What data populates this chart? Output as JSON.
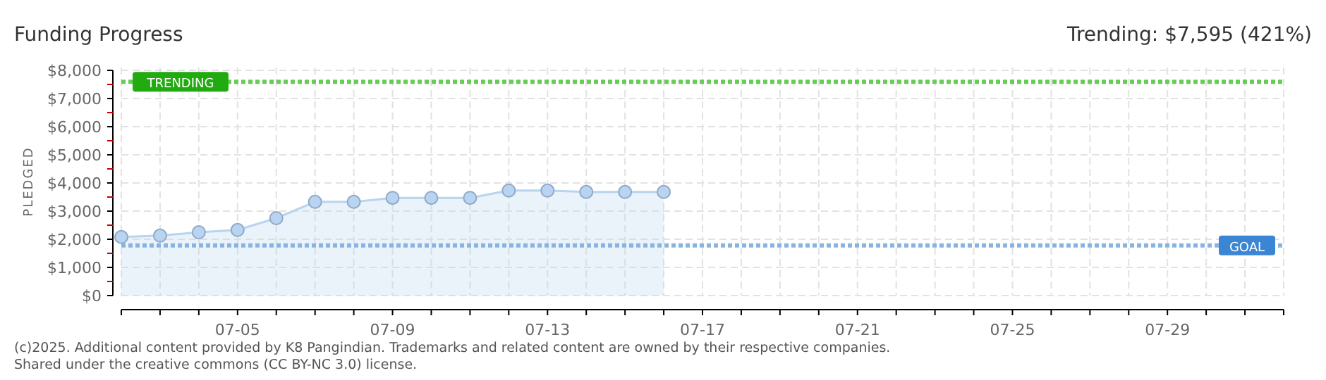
{
  "chart_data": {
    "type": "area",
    "title": "Funding Progress",
    "subtitle": "Trending: $7,595 (421%)",
    "ylabel": "PLEDGED",
    "x": [
      "--07-02",
      "--07-03",
      "--07-04",
      "--07-05",
      "--07-06",
      "--07-07",
      "--07-08",
      "--07-09",
      "--07-10",
      "--07-11",
      "--07-12",
      "--07-13",
      "--07-14",
      "--07-15",
      "--07-16"
    ],
    "series": [
      {
        "color": "#b8d4f0",
        "values": [
          2080,
          2130,
          2250,
          2330,
          2750,
          3330,
          3330,
          3470,
          3470,
          3470,
          3730,
          3730,
          3680,
          3680,
          3680
        ]
      }
    ],
    "xlim": [
      "--07-02",
      "--08-01"
    ],
    "xticks": [
      {
        "value": "--07-02",
        "label": null
      },
      {
        "value": "--07-03",
        "label": null
      },
      {
        "value": "--07-04",
        "label": null
      },
      {
        "value": "--07-05",
        "label": "07-05"
      },
      {
        "value": "--07-06",
        "label": null
      },
      {
        "value": "--07-07",
        "label": null
      },
      {
        "value": "--07-08",
        "label": null
      },
      {
        "value": "--07-09",
        "label": "07-09"
      },
      {
        "value": "--07-10",
        "label": null
      },
      {
        "value": "--07-11",
        "label": null
      },
      {
        "value": "--07-12",
        "label": null
      },
      {
        "value": "--07-13",
        "label": "07-13"
      },
      {
        "value": "--07-14",
        "label": null
      },
      {
        "value": "--07-15",
        "label": null
      },
      {
        "value": "--07-16",
        "label": null
      },
      {
        "value": "--07-17",
        "label": "07-17"
      },
      {
        "value": "--07-18",
        "label": null
      },
      {
        "value": "--07-19",
        "label": null
      },
      {
        "value": "--07-20",
        "label": null
      },
      {
        "value": "--07-21",
        "label": "07-21"
      },
      {
        "value": "--07-22",
        "label": null
      },
      {
        "value": "--07-23",
        "label": null
      },
      {
        "value": "--07-24",
        "label": null
      },
      {
        "value": "--07-25",
        "label": "07-25"
      },
      {
        "value": "--07-26",
        "label": null
      },
      {
        "value": "--07-27",
        "label": null
      },
      {
        "value": "--07-28",
        "label": null
      },
      {
        "value": "--07-29",
        "label": "07-29"
      },
      {
        "value": "--07-30",
        "label": null
      },
      {
        "value": "--07-31",
        "label": null
      },
      {
        "value": "--08-01",
        "label": null
      }
    ],
    "ylim": [
      0,
      8000
    ],
    "yticks": [
      {
        "value": 0,
        "label": "$0"
      },
      {
        "value": 500,
        "label": null
      },
      {
        "value": 1000,
        "label": "$1,000"
      },
      {
        "value": 1500,
        "label": null
      },
      {
        "value": 2000,
        "label": "$2,000"
      },
      {
        "value": 2500,
        "label": null
      },
      {
        "value": 3000,
        "label": "$3,000"
      },
      {
        "value": 3500,
        "label": null
      },
      {
        "value": 4000,
        "label": "$4,000"
      },
      {
        "value": 4500,
        "label": null
      },
      {
        "value": 5000,
        "label": "$5,000"
      },
      {
        "value": 5500,
        "label": null
      },
      {
        "value": 6000,
        "label": "$6,000"
      },
      {
        "value": 6500,
        "label": null
      },
      {
        "value": 7000,
        "label": "$7,000"
      },
      {
        "value": 7500,
        "label": null
      },
      {
        "value": 8000,
        "label": "$8,000"
      }
    ],
    "ref_lines": [
      {
        "axis": "y",
        "value": 7595,
        "label": "TRENDING",
        "color": "#66cc55",
        "line_style": "dotted"
      },
      {
        "axis": "y",
        "value": 1780,
        "label": "GOAL",
        "color": "#88b4e4",
        "line_style": "dotted"
      }
    ],
    "grid": true,
    "marker": "circle",
    "annotations": [
      "(c)2025. Additional content provided by K8 Pangindian. Trademarks and related content are owned by their respective companies.",
      "Shared under the creative commons (CC BY-NC 3.0) license."
    ]
  }
}
